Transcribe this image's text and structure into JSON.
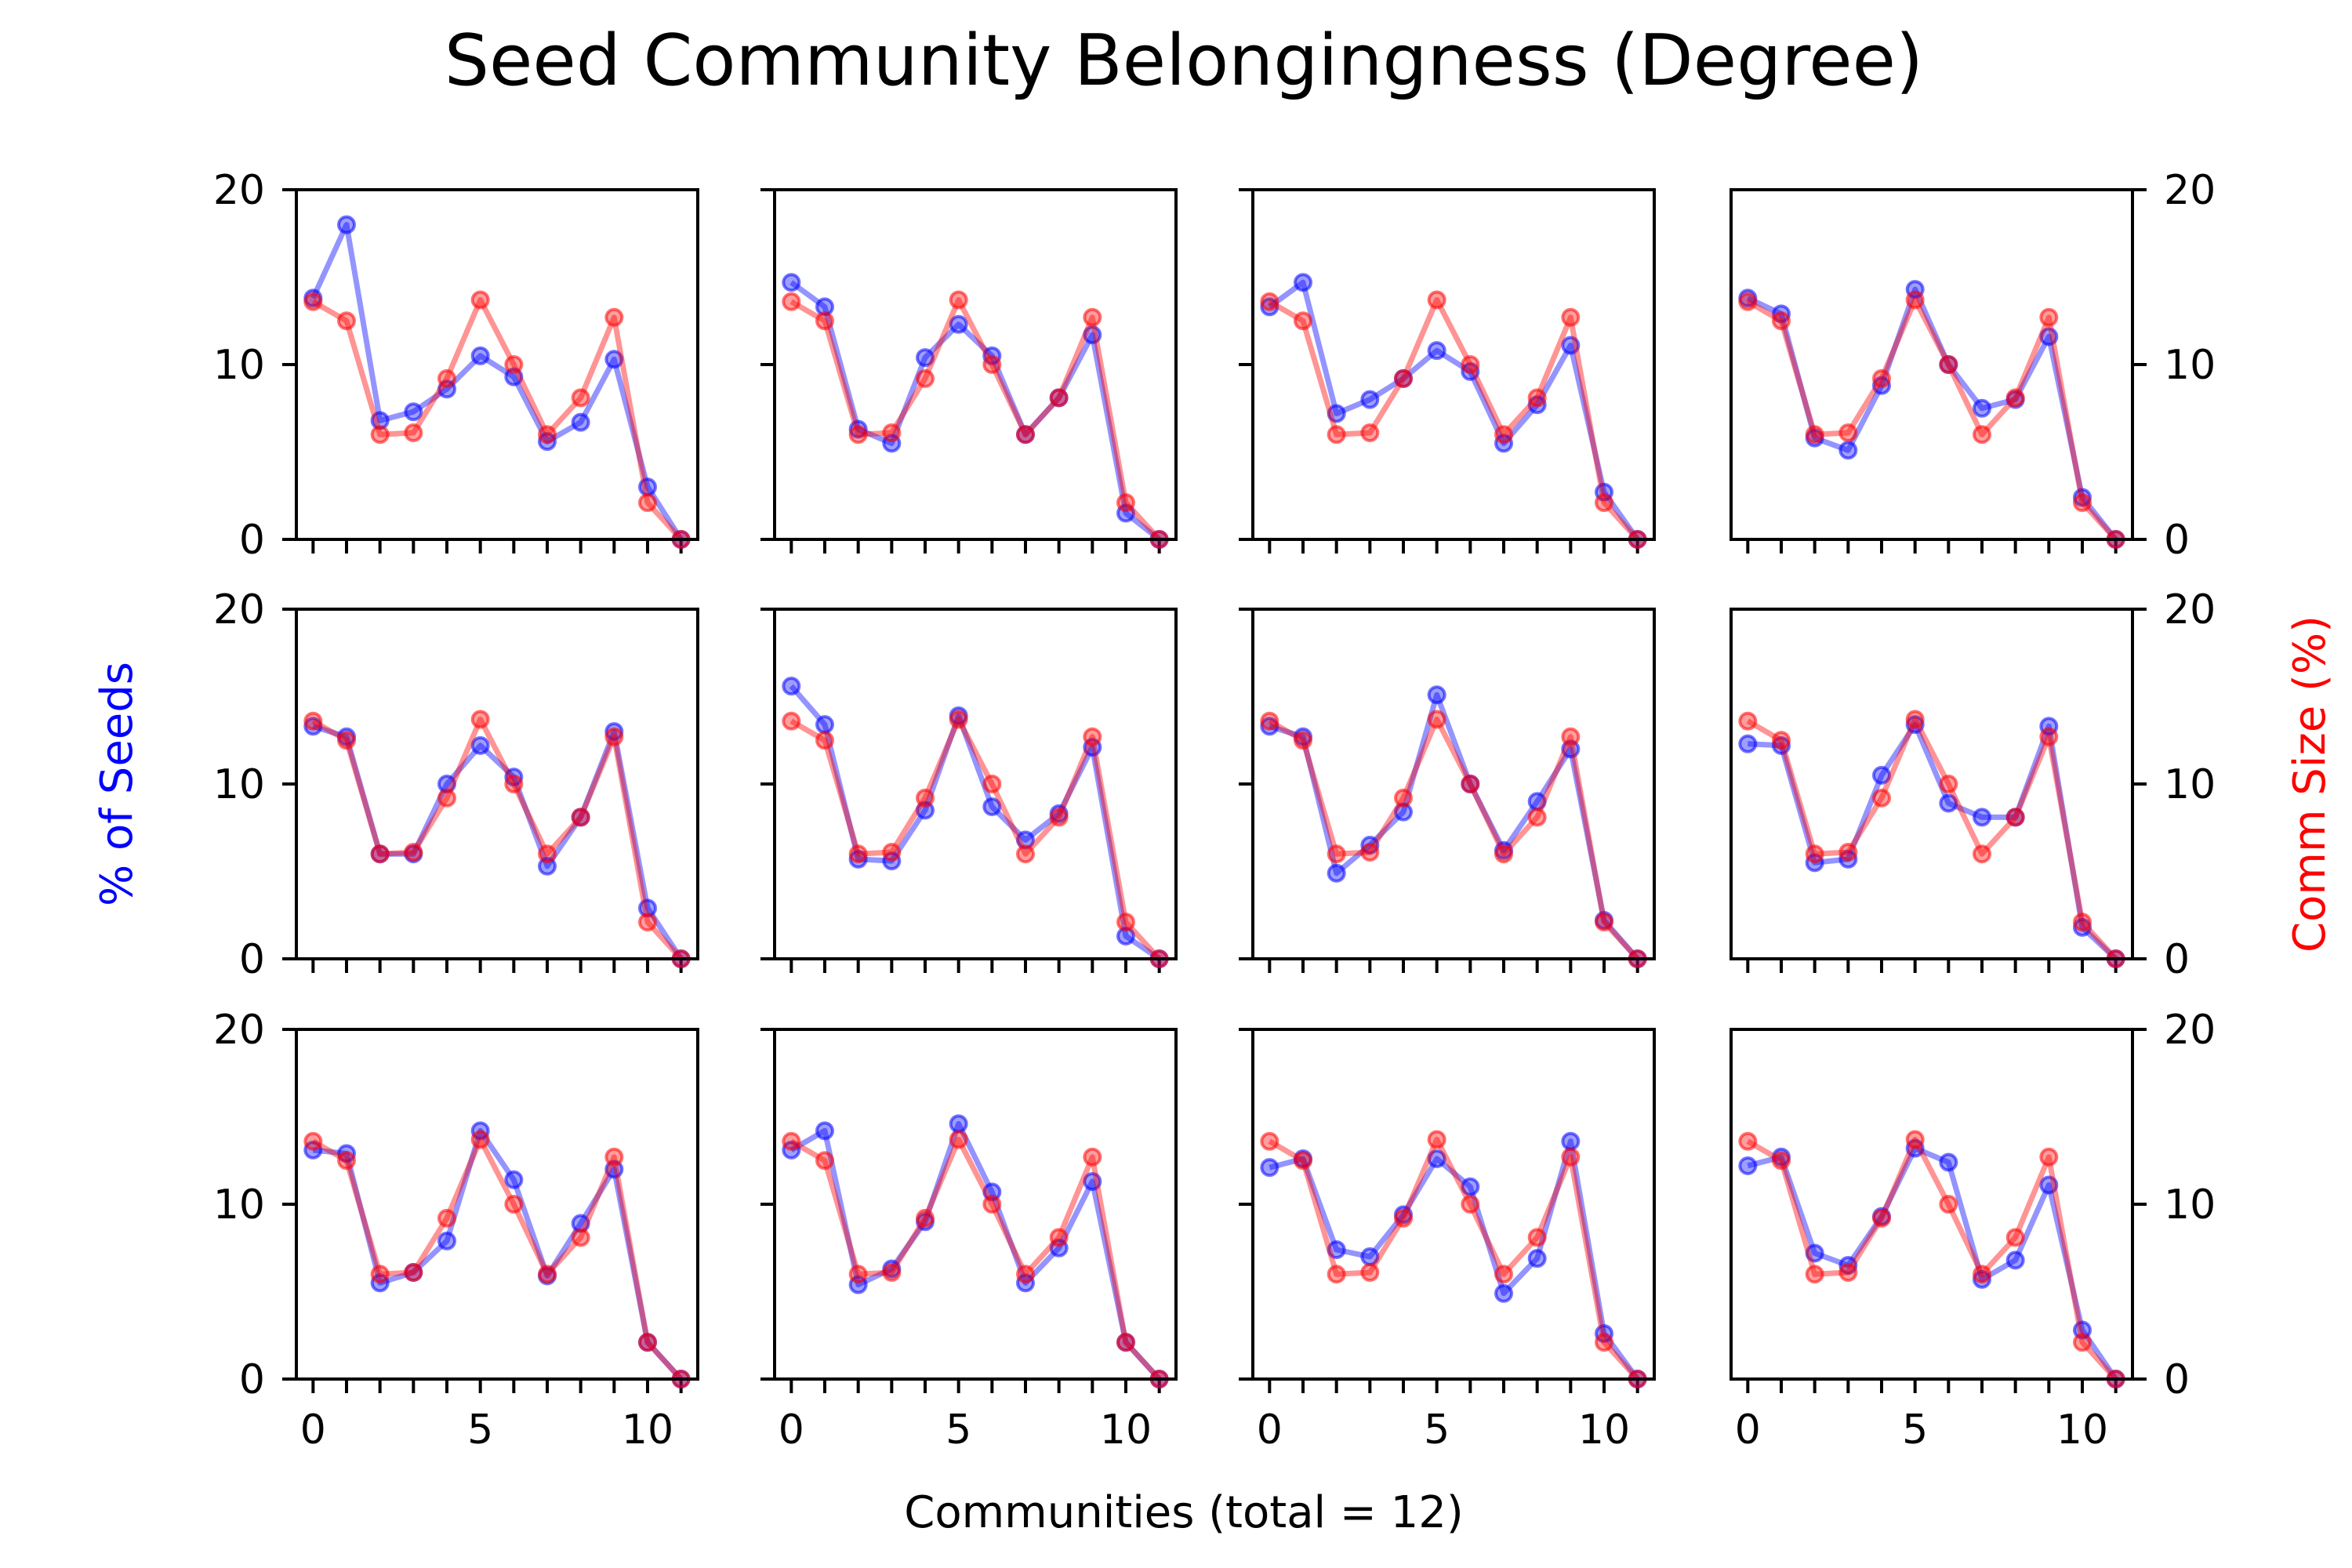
{
  "chart_data": {
    "type": "line",
    "title": "Seed Community Belongingness (Degree)",
    "xlabel": "Communities (total = 12)",
    "ylabel_left": "% of Seeds",
    "ylabel_right": "Comm Size (%)",
    "ylabel_left_color": "#0000ff",
    "ylabel_right_color": "#ff0000",
    "xlim": [
      -0.5,
      11.5
    ],
    "ylim": [
      0,
      20
    ],
    "xticks": [
      0,
      5,
      10
    ],
    "xtick_labels": [
      "0",
      "5",
      "10"
    ],
    "yticks": [
      0,
      10,
      20
    ],
    "ytick_labels": [
      "0",
      "10",
      "20"
    ],
    "grid": false,
    "rows": 3,
    "cols": 4,
    "series_colors": {
      "seeds": "#0000ff",
      "comm_size": "#ff0000"
    },
    "comm_size": [
      13.6,
      12.5,
      6.0,
      6.1,
      9.2,
      13.7,
      10.0,
      6.0,
      8.1,
      12.7,
      2.1,
      0.0
    ],
    "panels": [
      {
        "seeds": [
          13.8,
          18.0,
          6.8,
          7.3,
          8.6,
          10.5,
          9.3,
          5.6,
          6.7,
          10.3,
          3.0,
          0.0
        ]
      },
      {
        "seeds": [
          14.7,
          13.3,
          6.3,
          5.5,
          10.4,
          12.3,
          10.5,
          6.0,
          8.1,
          11.7,
          1.5,
          0.0
        ]
      },
      {
        "seeds": [
          13.3,
          14.7,
          7.2,
          8.0,
          9.2,
          10.8,
          9.6,
          5.5,
          7.7,
          11.1,
          2.7,
          0.0
        ]
      },
      {
        "seeds": [
          13.8,
          12.9,
          5.8,
          5.1,
          8.8,
          14.3,
          10.0,
          7.5,
          8.0,
          11.6,
          2.4,
          0.0
        ]
      },
      {
        "seeds": [
          13.3,
          12.7,
          6.0,
          6.0,
          10.0,
          12.2,
          10.4,
          5.3,
          8.1,
          13.0,
          2.9,
          0.0
        ]
      },
      {
        "seeds": [
          15.6,
          13.4,
          5.7,
          5.6,
          8.5,
          13.9,
          8.7,
          6.8,
          8.3,
          12.1,
          1.3,
          0.0
        ]
      },
      {
        "seeds": [
          13.3,
          12.7,
          4.9,
          6.5,
          8.4,
          15.1,
          10.0,
          6.2,
          9.0,
          12.0,
          2.2,
          0.0
        ]
      },
      {
        "seeds": [
          12.3,
          12.2,
          5.5,
          5.7,
          10.5,
          13.4,
          8.9,
          8.1,
          8.1,
          13.3,
          1.8,
          0.0
        ]
      },
      {
        "seeds": [
          13.1,
          12.9,
          5.5,
          6.1,
          7.9,
          14.2,
          11.4,
          5.9,
          8.9,
          12.0,
          2.1,
          0.0
        ]
      },
      {
        "seeds": [
          13.1,
          14.2,
          5.4,
          6.3,
          9.0,
          14.6,
          10.7,
          5.5,
          7.5,
          11.3,
          2.1,
          0.0
        ]
      },
      {
        "seeds": [
          12.1,
          12.6,
          7.4,
          7.0,
          9.4,
          12.6,
          11.0,
          4.9,
          6.9,
          13.6,
          2.6,
          0.0
        ]
      },
      {
        "seeds": [
          12.2,
          12.7,
          7.2,
          6.5,
          9.3,
          13.2,
          12.4,
          5.7,
          6.8,
          11.1,
          2.8,
          0.0
        ]
      }
    ]
  }
}
